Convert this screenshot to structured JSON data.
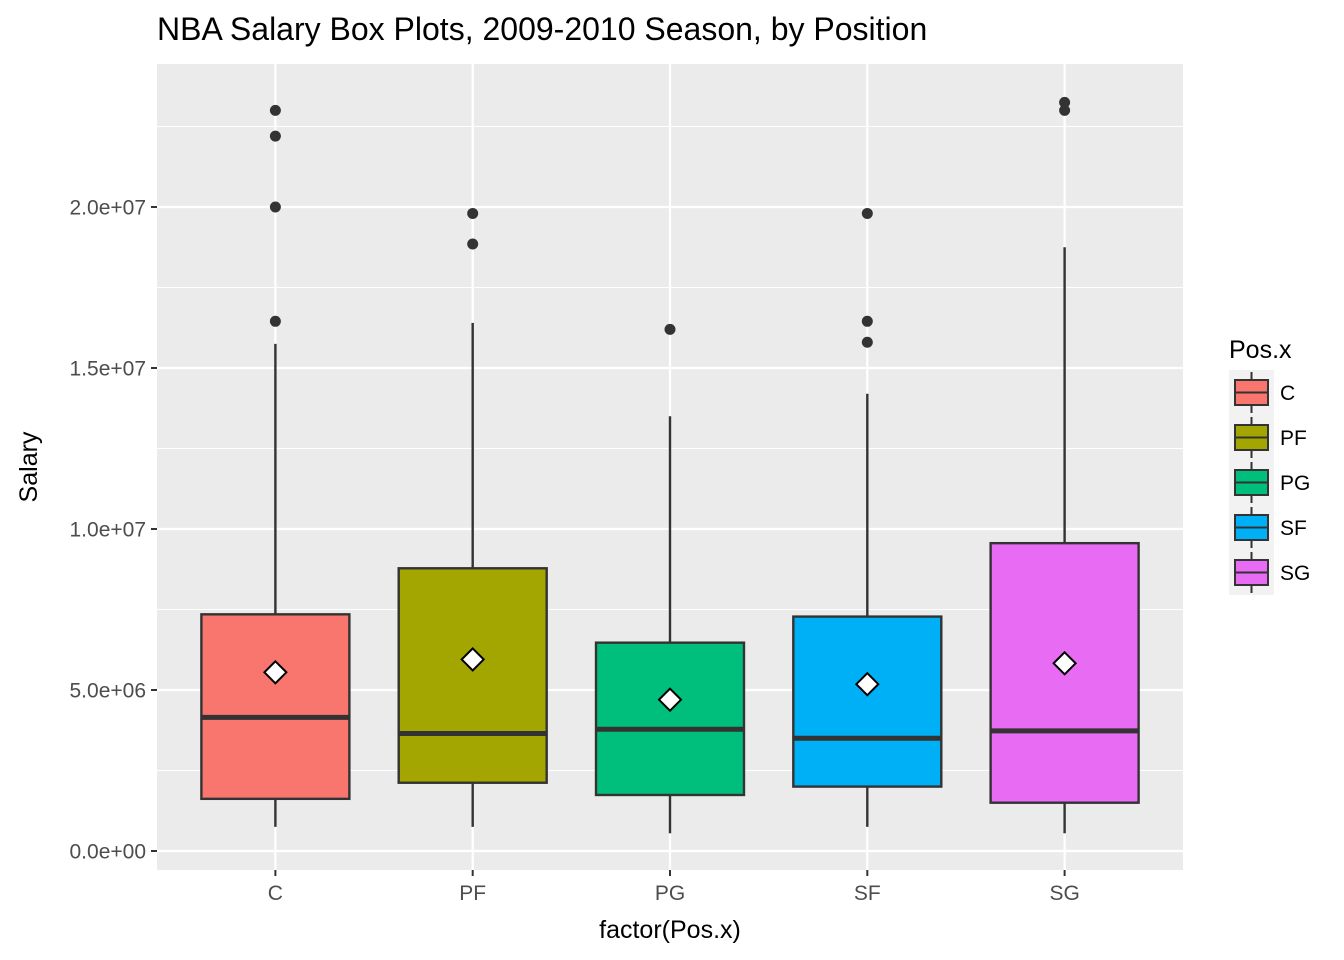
{
  "chart_data": {
    "type": "box",
    "title": "NBA Salary Box Plots, 2009-2010 Season, by Position",
    "xlabel": "factor(Pos.x)",
    "ylabel": "Salary",
    "ylim": [
      -600000,
      24500000
    ],
    "y_ticks": [
      {
        "value": 0,
        "label": "0.0e+00"
      },
      {
        "value": 5000000,
        "label": "5.0e+06"
      },
      {
        "value": 10000000,
        "label": "1.0e+07"
      },
      {
        "value": 15000000,
        "label": "1.5e+07"
      },
      {
        "value": 20000000,
        "label": "2.0e+07"
      }
    ],
    "y_minor_ticks": [
      2500000,
      7500000,
      12500000,
      17500000,
      22500000
    ],
    "grid": true,
    "legend": {
      "title": "Pos.x",
      "position": "right",
      "entries": [
        "C",
        "PF",
        "PG",
        "SF",
        "SG"
      ]
    },
    "categories": [
      "C",
      "PF",
      "PG",
      "SF",
      "SG"
    ],
    "boxes": [
      {
        "category": "C",
        "color": "#F8766D",
        "whisker_low": 750000,
        "q1": 1620000,
        "median": 4150000,
        "q3": 7350000,
        "whisker_high": 15750000,
        "mean": 5550000,
        "outliers": [
          16450000,
          20000000,
          22200000,
          23000000
        ]
      },
      {
        "category": "PF",
        "color": "#A3A500",
        "whisker_low": 750000,
        "q1": 2120000,
        "median": 3650000,
        "q3": 8780000,
        "whisker_high": 16400000,
        "mean": 5950000,
        "outliers": [
          18850000,
          19800000
        ]
      },
      {
        "category": "PG",
        "color": "#00BF7D",
        "whisker_low": 550000,
        "q1": 1740000,
        "median": 3780000,
        "q3": 6470000,
        "whisker_high": 13500000,
        "mean": 4700000,
        "outliers": [
          16200000
        ]
      },
      {
        "category": "SF",
        "color": "#00B0F6",
        "whisker_low": 750000,
        "q1": 2000000,
        "median": 3500000,
        "q3": 7280000,
        "whisker_high": 14200000,
        "mean": 5180000,
        "outliers": [
          15800000,
          16450000,
          19800000
        ]
      },
      {
        "category": "SG",
        "color": "#E76BF3",
        "whisker_low": 550000,
        "q1": 1500000,
        "median": 3730000,
        "q3": 9560000,
        "whisker_high": 18750000,
        "mean": 5830000,
        "outliers": [
          23000000,
          23250000
        ]
      }
    ]
  }
}
